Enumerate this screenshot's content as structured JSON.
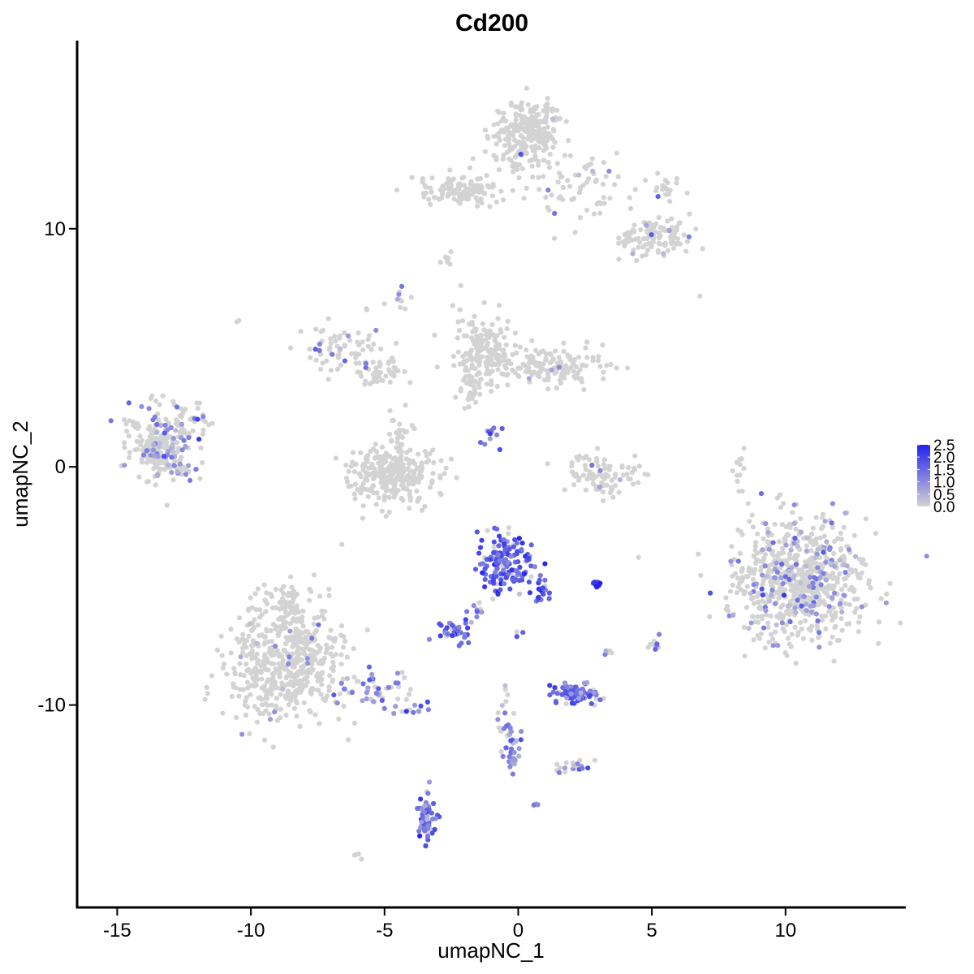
{
  "chart_data": {
    "type": "scatter",
    "title": "Cd200",
    "xlabel": "umapNC_1",
    "ylabel": "umapNC_2",
    "xlim": [
      -16.5,
      14.5
    ],
    "ylim": [
      -18.5,
      17.9
    ],
    "xticks": [
      -15,
      -10,
      -5,
      0,
      5,
      10
    ],
    "yticks": [
      -10,
      0,
      10
    ],
    "xtick_labels": [
      "-15",
      "-10",
      "-5",
      "0",
      "5",
      "10"
    ],
    "ytick_labels": [
      "-10",
      "0",
      "10"
    ],
    "grid": false,
    "legend": {
      "position": "right",
      "kind": "colorbar",
      "range": [
        0,
        2.5
      ],
      "ticks": [
        2.5,
        2.0,
        1.5,
        1.0,
        0.5,
        0.0
      ],
      "tick_labels": [
        "2.5",
        "2.0",
        "1.5",
        "1.0",
        "0.5",
        "0.0"
      ],
      "color_low": "#d3d3d3",
      "color_high": "#2222ee"
    },
    "clusters": [
      {
        "cx": -13.4,
        "cy": 1.0,
        "sx": 0.55,
        "sy": 0.75,
        "n": 220,
        "expr_frac": 0.22,
        "expr_mean": 0.9
      },
      {
        "cx": -12.1,
        "cy": 1.9,
        "sx": 0.3,
        "sy": 0.4,
        "n": 30,
        "expr_frac": 0.35,
        "expr_mean": 1.0
      },
      {
        "cx": -12.6,
        "cy": -0.1,
        "sx": 0.3,
        "sy": 0.15,
        "n": 20,
        "expr_frac": 0.5,
        "expr_mean": 1.0
      },
      {
        "cx": -6.6,
        "cy": 4.8,
        "sx": 0.8,
        "sy": 0.6,
        "n": 70,
        "expr_frac": 0.15,
        "expr_mean": 1.0
      },
      {
        "cx": -5.0,
        "cy": 4.0,
        "sx": 0.5,
        "sy": 0.3,
        "n": 40,
        "expr_frac": 0.0,
        "expr_mean": 0
      },
      {
        "cx": -4.4,
        "cy": 7.1,
        "sx": 0.15,
        "sy": 0.3,
        "n": 10,
        "expr_frac": 0.6,
        "expr_mean": 1.0
      },
      {
        "cx": -4.8,
        "cy": -0.3,
        "sx": 0.9,
        "sy": 0.55,
        "n": 300,
        "expr_frac": 0.0,
        "expr_mean": 0
      },
      {
        "cx": -4.4,
        "cy": 1.3,
        "sx": 0.25,
        "sy": 0.6,
        "n": 30,
        "expr_frac": 0.0,
        "expr_mean": 0
      },
      {
        "cx": -1.3,
        "cy": 4.8,
        "sx": 0.55,
        "sy": 0.8,
        "n": 160,
        "expr_frac": 0.0,
        "expr_mean": 0
      },
      {
        "cx": 1.2,
        "cy": 4.2,
        "sx": 1.2,
        "sy": 0.4,
        "n": 140,
        "expr_frac": 0.02,
        "expr_mean": 0.8
      },
      {
        "cx": -1.7,
        "cy": 3.2,
        "sx": 0.3,
        "sy": 0.5,
        "n": 25,
        "expr_frac": 0.0,
        "expr_mean": 0
      },
      {
        "cx": -1.1,
        "cy": 1.3,
        "sx": 0.35,
        "sy": 0.25,
        "n": 12,
        "expr_frac": 0.9,
        "expr_mean": 1.4
      },
      {
        "cx": 3.3,
        "cy": -0.4,
        "sx": 0.7,
        "sy": 0.45,
        "n": 90,
        "expr_frac": 0.03,
        "expr_mean": 0.8
      },
      {
        "cx": 0.3,
        "cy": 14.0,
        "sx": 0.6,
        "sy": 0.7,
        "n": 260,
        "expr_frac": 0.02,
        "expr_mean": 1.0
      },
      {
        "cx": -2.1,
        "cy": 11.6,
        "sx": 0.9,
        "sy": 0.35,
        "n": 110,
        "expr_frac": 0.0,
        "expr_mean": 0
      },
      {
        "cx": 2.2,
        "cy": 11.7,
        "sx": 0.8,
        "sy": 0.7,
        "n": 60,
        "expr_frac": 0.06,
        "expr_mean": 1.0
      },
      {
        "cx": 5.3,
        "cy": 9.6,
        "sx": 0.55,
        "sy": 0.35,
        "n": 90,
        "expr_frac": 0.04,
        "expr_mean": 1.0
      },
      {
        "cx": 4.3,
        "cy": 9.4,
        "sx": 0.3,
        "sy": 0.4,
        "n": 30,
        "expr_frac": 0.08,
        "expr_mean": 1.0
      },
      {
        "cx": 5.5,
        "cy": 11.8,
        "sx": 0.25,
        "sy": 0.3,
        "n": 20,
        "expr_frac": 0.1,
        "expr_mean": 1.0
      },
      {
        "cx": -0.5,
        "cy": -4.0,
        "sx": 0.5,
        "sy": 0.6,
        "n": 150,
        "expr_frac": 0.85,
        "expr_mean": 1.6
      },
      {
        "cx": 0.9,
        "cy": -5.1,
        "sx": 0.25,
        "sy": 0.4,
        "n": 25,
        "expr_frac": 0.9,
        "expr_mean": 1.8
      },
      {
        "cx": -2.4,
        "cy": -6.9,
        "sx": 0.3,
        "sy": 0.2,
        "n": 40,
        "expr_frac": 0.85,
        "expr_mean": 1.5
      },
      {
        "cx": -1.5,
        "cy": -6.2,
        "sx": 0.2,
        "sy": 0.3,
        "n": 10,
        "expr_frac": 0.7,
        "expr_mean": 1.4
      },
      {
        "cx": 2.2,
        "cy": -9.5,
        "sx": 0.45,
        "sy": 0.22,
        "n": 100,
        "expr_frac": 0.8,
        "expr_mean": 1.4
      },
      {
        "cx": 2.9,
        "cy": -4.9,
        "sx": 0.15,
        "sy": 0.08,
        "n": 8,
        "expr_frac": 1.0,
        "expr_mean": 2.0
      },
      {
        "cx": -8.7,
        "cy": -8.4,
        "sx": 1.1,
        "sy": 1.2,
        "n": 520,
        "expr_frac": 0.02,
        "expr_mean": 0.9
      },
      {
        "cx": -8.6,
        "cy": -6.0,
        "sx": 0.5,
        "sy": 0.6,
        "n": 60,
        "expr_frac": 0.02,
        "expr_mean": 0.9
      },
      {
        "cx": -5.4,
        "cy": -9.3,
        "sx": 0.7,
        "sy": 0.35,
        "n": 50,
        "expr_frac": 0.6,
        "expr_mean": 1.1
      },
      {
        "cx": -4.0,
        "cy": -10.2,
        "sx": 0.3,
        "sy": 0.15,
        "n": 12,
        "expr_frac": 0.7,
        "expr_mean": 1.2
      },
      {
        "cx": -3.4,
        "cy": -14.7,
        "sx": 0.18,
        "sy": 0.55,
        "n": 55,
        "expr_frac": 0.9,
        "expr_mean": 1.5
      },
      {
        "cx": -0.2,
        "cy": -11.8,
        "sx": 0.2,
        "sy": 0.5,
        "n": 35,
        "expr_frac": 0.75,
        "expr_mean": 1.1
      },
      {
        "cx": -0.5,
        "cy": -10.2,
        "sx": 0.15,
        "sy": 0.6,
        "n": 15,
        "expr_frac": 0.4,
        "expr_mean": 1.0
      },
      {
        "cx": 2.0,
        "cy": -12.6,
        "sx": 0.35,
        "sy": 0.2,
        "n": 20,
        "expr_frac": 0.3,
        "expr_mean": 1.0
      },
      {
        "cx": 10.5,
        "cy": -4.8,
        "sx": 1.25,
        "sy": 1.3,
        "n": 700,
        "expr_frac": 0.17,
        "expr_mean": 0.9
      },
      {
        "cx": 5.0,
        "cy": -7.5,
        "sx": 0.2,
        "sy": 0.25,
        "n": 10,
        "expr_frac": 0.4,
        "expr_mean": 1.0
      },
      {
        "cx": 8.3,
        "cy": -0.2,
        "sx": 0.15,
        "sy": 0.5,
        "n": 12,
        "expr_frac": 0.0,
        "expr_mean": 0
      },
      {
        "cx": -2.7,
        "cy": 8.8,
        "sx": 0.15,
        "sy": 0.15,
        "n": 8,
        "expr_frac": 0.0,
        "expr_mean": 0
      },
      {
        "cx": -10.5,
        "cy": 6.1,
        "sx": 0.05,
        "sy": 0.05,
        "n": 2,
        "expr_frac": 0.0,
        "expr_mean": 0
      },
      {
        "cx": 6.8,
        "cy": 7.1,
        "sx": 0.05,
        "sy": 0.05,
        "n": 1,
        "expr_frac": 0.0,
        "expr_mean": 0
      },
      {
        "cx": -6.0,
        "cy": -16.3,
        "sx": 0.1,
        "sy": 0.08,
        "n": 4,
        "expr_frac": 0.0,
        "expr_mean": 0
      },
      {
        "cx": 0.6,
        "cy": -14.2,
        "sx": 0.08,
        "sy": 0.06,
        "n": 4,
        "expr_frac": 0.8,
        "expr_mean": 1.0
      },
      {
        "cx": 0.0,
        "cy": -7.0,
        "sx": 0.1,
        "sy": 0.1,
        "n": 3,
        "expr_frac": 0.7,
        "expr_mean": 2.0
      },
      {
        "cx": 3.4,
        "cy": -7.7,
        "sx": 0.1,
        "sy": 0.1,
        "n": 5,
        "expr_frac": 0.2,
        "expr_mean": 1.0
      }
    ]
  }
}
